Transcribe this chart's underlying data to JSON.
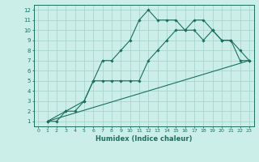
{
  "xlabel": "Humidex (Indice chaleur)",
  "bg_color": "#cceee8",
  "grid_color": "#aad4cc",
  "line_color": "#1a7060",
  "xlim": [
    -0.5,
    23.5
  ],
  "ylim": [
    0.5,
    12.5
  ],
  "xticks": [
    0,
    1,
    2,
    3,
    4,
    5,
    6,
    7,
    8,
    9,
    10,
    11,
    12,
    13,
    14,
    15,
    16,
    17,
    18,
    19,
    20,
    21,
    22,
    23
  ],
  "yticks": [
    1,
    2,
    3,
    4,
    5,
    6,
    7,
    8,
    9,
    10,
    11,
    12
  ],
  "line1_x": [
    1,
    2,
    3,
    4,
    5,
    6,
    7,
    8,
    9,
    10,
    11,
    12,
    13,
    14,
    15,
    16,
    17,
    18,
    19,
    20,
    21,
    22,
    23
  ],
  "line1_y": [
    1,
    1,
    2,
    2,
    3,
    5,
    7,
    7,
    8,
    9,
    11,
    12,
    11,
    11,
    11,
    10,
    11,
    11,
    10,
    9,
    9,
    8,
    7
  ],
  "line2_x": [
    1,
    3,
    5,
    6,
    7,
    8,
    9,
    10,
    11,
    12,
    13,
    14,
    15,
    16,
    17,
    18,
    19,
    20,
    21,
    22,
    23
  ],
  "line2_y": [
    1,
    2,
    3,
    5,
    5,
    5,
    5,
    5,
    5,
    7,
    8,
    9,
    10,
    10,
    10,
    9,
    10,
    9,
    9,
    7,
    7
  ],
  "line3_x": [
    1,
    23
  ],
  "line3_y": [
    1,
    7
  ]
}
